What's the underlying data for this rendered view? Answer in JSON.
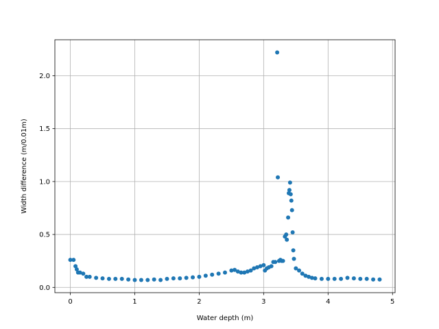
{
  "chart_data": {
    "type": "scatter",
    "title": "",
    "xlabel": "Water depth (m)",
    "ylabel": "Width difference (m/0.01m)",
    "xlim": [
      -0.24,
      5.04
    ],
    "ylim": [
      -0.05,
      2.34
    ],
    "xticks": [
      0,
      1,
      2,
      3,
      4,
      5
    ],
    "xtick_labels": [
      "0",
      "1",
      "2",
      "3",
      "4",
      "5"
    ],
    "yticks": [
      0.0,
      0.5,
      1.0,
      1.5,
      2.0
    ],
    "ytick_labels": [
      "0.0",
      "0.5",
      "1.0",
      "1.5",
      "2.0"
    ],
    "grid": true,
    "legend": "none",
    "marker_color": "#1f77b4",
    "series": [
      {
        "x": [
          0.0,
          0.05,
          0.08,
          0.1,
          0.12,
          0.15,
          0.2,
          0.25,
          0.3,
          0.4,
          0.5,
          0.6,
          0.7,
          0.8,
          0.9,
          1.0,
          1.1,
          1.2,
          1.3,
          1.4,
          1.5,
          1.6,
          1.7,
          1.8,
          1.9,
          2.0,
          2.1,
          2.2,
          2.3,
          2.4,
          2.5,
          2.55,
          2.6,
          2.65,
          2.7,
          2.75,
          2.8,
          2.85,
          2.9,
          2.95,
          3.0,
          3.02,
          3.05,
          3.08,
          3.12,
          3.15,
          3.18,
          3.21,
          3.22,
          3.24,
          3.26,
          3.28,
          3.3,
          3.33,
          3.35,
          3.36,
          3.38,
          3.39,
          3.4,
          3.41,
          3.42,
          3.43,
          3.44,
          3.45,
          3.46,
          3.47,
          3.5,
          3.55,
          3.6,
          3.65,
          3.7,
          3.75,
          3.8,
          3.9,
          4.0,
          4.1,
          4.2,
          4.3,
          4.4,
          4.5,
          4.6,
          4.7,
          4.8
        ],
        "y": [
          0.26,
          0.26,
          0.2,
          0.17,
          0.14,
          0.14,
          0.13,
          0.1,
          0.1,
          0.09,
          0.085,
          0.08,
          0.08,
          0.08,
          0.075,
          0.07,
          0.07,
          0.07,
          0.075,
          0.07,
          0.08,
          0.085,
          0.085,
          0.09,
          0.095,
          0.1,
          0.11,
          0.12,
          0.13,
          0.14,
          0.16,
          0.165,
          0.15,
          0.14,
          0.14,
          0.15,
          0.16,
          0.18,
          0.19,
          0.2,
          0.21,
          0.16,
          0.18,
          0.19,
          0.2,
          0.24,
          0.24,
          2.22,
          1.04,
          0.25,
          0.26,
          0.25,
          0.25,
          0.48,
          0.5,
          0.45,
          0.66,
          0.89,
          0.92,
          0.99,
          0.88,
          0.82,
          0.73,
          0.52,
          0.35,
          0.27,
          0.18,
          0.16,
          0.13,
          0.11,
          0.1,
          0.09,
          0.085,
          0.08,
          0.08,
          0.08,
          0.08,
          0.09,
          0.085,
          0.08,
          0.08,
          0.075,
          0.075
        ]
      }
    ]
  }
}
